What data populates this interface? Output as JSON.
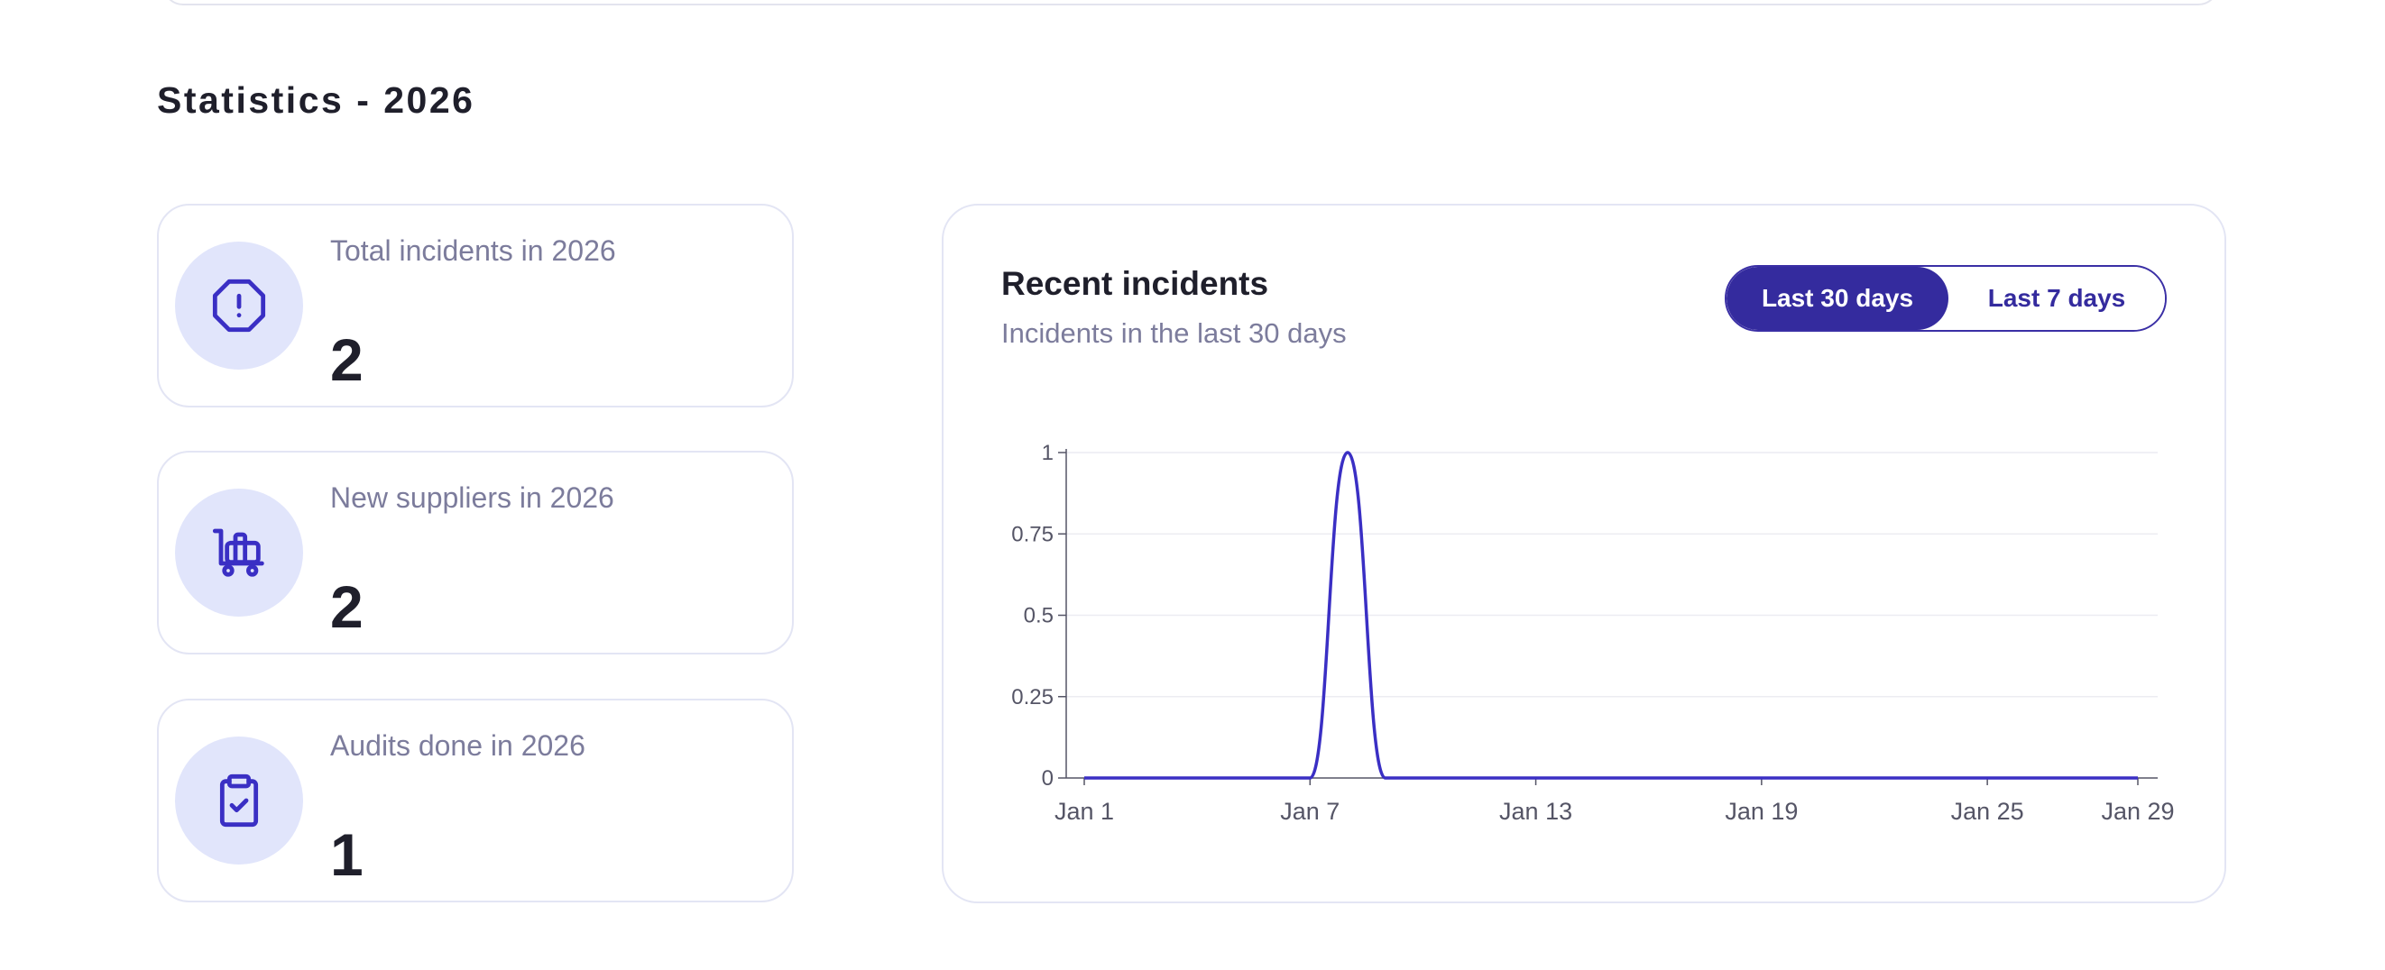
{
  "section": {
    "title": "Statistics - 2026"
  },
  "stats": [
    {
      "label": "Total incidents in 2026",
      "value": "2",
      "icon": "alert-octagon-icon"
    },
    {
      "label": "New suppliers in 2026",
      "value": "2",
      "icon": "luggage-cart-icon"
    },
    {
      "label": "Audits done in 2026",
      "value": "1",
      "icon": "clipboard-check-icon"
    }
  ],
  "chart_card": {
    "title": "Recent incidents",
    "subtitle": "Incidents in the last 30 days",
    "toggle": {
      "active_label": "Last 30 days",
      "inactive_label": "Last 7 days"
    }
  },
  "colors": {
    "accent": "#342b9e",
    "line": "#3a2fc4",
    "icon_bg": "#e1e5fb",
    "muted_text": "#7c7c9c"
  },
  "chart_data": {
    "type": "line",
    "title": "",
    "xlabel": "",
    "ylabel": "",
    "x": [
      "Jan 1",
      "Jan 2",
      "Jan 3",
      "Jan 4",
      "Jan 5",
      "Jan 6",
      "Jan 7",
      "Jan 8",
      "Jan 9",
      "Jan 10",
      "Jan 11",
      "Jan 12",
      "Jan 13",
      "Jan 14",
      "Jan 15",
      "Jan 16",
      "Jan 17",
      "Jan 18",
      "Jan 19",
      "Jan 20",
      "Jan 21",
      "Jan 22",
      "Jan 23",
      "Jan 24",
      "Jan 25",
      "Jan 26",
      "Jan 27",
      "Jan 28",
      "Jan 29"
    ],
    "series": [
      {
        "values": [
          0,
          0,
          0,
          0,
          0,
          0,
          0,
          1,
          0,
          0,
          0,
          0,
          0,
          0,
          0,
          0,
          0,
          0,
          0,
          0,
          0,
          0,
          0,
          0,
          0,
          0,
          0,
          0,
          0
        ]
      }
    ],
    "x_ticks": [
      "Jan 1",
      "Jan 7",
      "Jan 13",
      "Jan 19",
      "Jan 25",
      "Jan 29"
    ],
    "y_ticks": [
      "0",
      "0.25",
      "0.5",
      "0.75",
      "1"
    ],
    "ylim": [
      0,
      1
    ],
    "grid": true,
    "legend": "none"
  }
}
